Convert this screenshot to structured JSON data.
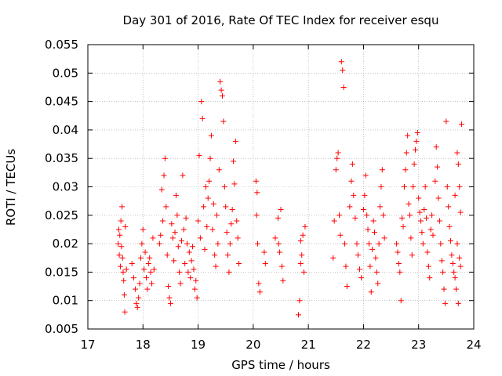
{
  "chart_data": {
    "type": "scatter",
    "title": "Day 301 of 2016, Rate Of TEC Index for receiver esqu",
    "xlabel": "GPS time / hours",
    "ylabel": "ROTI / TECUs",
    "xlim": [
      17,
      24
    ],
    "ylim": [
      0.005,
      0.055
    ],
    "xticks": [
      "17",
      "18",
      "19",
      "20",
      "21",
      "22",
      "23",
      "24"
    ],
    "yticks": [
      "0.005",
      "0.01",
      "0.015",
      "0.02",
      "0.025",
      "0.03",
      "0.035",
      "0.04",
      "0.045",
      "0.05",
      "0.055"
    ],
    "grid": true,
    "marker": "plus",
    "color": "#ff0000",
    "series": [
      {
        "name": "esqu",
        "points": [
          [
            17.55,
            0.02
          ],
          [
            17.56,
            0.0225
          ],
          [
            17.57,
            0.018
          ],
          [
            17.58,
            0.0215
          ],
          [
            17.59,
            0.016
          ],
          [
            17.6,
            0.024
          ],
          [
            17.61,
            0.0195
          ],
          [
            17.62,
            0.0265
          ],
          [
            17.63,
            0.0175
          ],
          [
            17.64,
            0.015
          ],
          [
            17.65,
            0.0135
          ],
          [
            17.66,
            0.011
          ],
          [
            17.67,
            0.008
          ],
          [
            17.68,
            0.023
          ],
          [
            17.7,
            0.0155
          ],
          [
            17.8,
            0.0165
          ],
          [
            17.83,
            0.014
          ],
          [
            17.86,
            0.012
          ],
          [
            17.88,
            0.0095
          ],
          [
            17.9,
            0.0088
          ],
          [
            17.92,
            0.0105
          ],
          [
            17.94,
            0.013
          ],
          [
            17.96,
            0.0175
          ],
          [
            17.98,
            0.02
          ],
          [
            18.0,
            0.0225
          ],
          [
            18.02,
            0.0155
          ],
          [
            18.04,
            0.0185
          ],
          [
            18.06,
            0.014
          ],
          [
            18.08,
            0.012
          ],
          [
            18.1,
            0.0165
          ],
          [
            18.12,
            0.0175
          ],
          [
            18.14,
            0.015
          ],
          [
            18.16,
            0.013
          ],
          [
            18.18,
            0.021
          ],
          [
            18.2,
            0.0155
          ],
          [
            18.3,
            0.02
          ],
          [
            18.32,
            0.0215
          ],
          [
            18.34,
            0.0295
          ],
          [
            18.36,
            0.024
          ],
          [
            18.38,
            0.032
          ],
          [
            18.4,
            0.035
          ],
          [
            18.42,
            0.0265
          ],
          [
            18.44,
            0.018
          ],
          [
            18.46,
            0.0125
          ],
          [
            18.48,
            0.0105
          ],
          [
            18.5,
            0.0095
          ],
          [
            18.52,
            0.0235
          ],
          [
            18.54,
            0.021
          ],
          [
            18.56,
            0.017
          ],
          [
            18.58,
            0.022
          ],
          [
            18.6,
            0.0285
          ],
          [
            18.62,
            0.025
          ],
          [
            18.64,
            0.0195
          ],
          [
            18.66,
            0.015
          ],
          [
            18.68,
            0.013
          ],
          [
            18.7,
            0.0205
          ],
          [
            18.72,
            0.032
          ],
          [
            18.74,
            0.0225
          ],
          [
            18.76,
            0.0165
          ],
          [
            18.78,
            0.0245
          ],
          [
            18.8,
            0.02
          ],
          [
            18.82,
            0.015
          ],
          [
            18.84,
            0.0185
          ],
          [
            18.86,
            0.014
          ],
          [
            18.88,
            0.017
          ],
          [
            18.9,
            0.0195
          ],
          [
            18.92,
            0.0155
          ],
          [
            18.94,
            0.012
          ],
          [
            18.96,
            0.0135
          ],
          [
            18.98,
            0.0105
          ],
          [
            19.0,
            0.024
          ],
          [
            19.02,
            0.0355
          ],
          [
            19.04,
            0.021
          ],
          [
            19.06,
            0.045
          ],
          [
            19.08,
            0.042
          ],
          [
            19.1,
            0.0265
          ],
          [
            19.12,
            0.019
          ],
          [
            19.14,
            0.03
          ],
          [
            19.16,
            0.023
          ],
          [
            19.18,
            0.028
          ],
          [
            19.2,
            0.031
          ],
          [
            19.22,
            0.035
          ],
          [
            19.24,
            0.039
          ],
          [
            19.26,
            0.0225
          ],
          [
            19.28,
            0.027
          ],
          [
            19.3,
            0.018
          ],
          [
            19.32,
            0.016
          ],
          [
            19.34,
            0.025
          ],
          [
            19.36,
            0.02
          ],
          [
            19.38,
            0.033
          ],
          [
            19.4,
            0.0485
          ],
          [
            19.42,
            0.047
          ],
          [
            19.44,
            0.046
          ],
          [
            19.46,
            0.0415
          ],
          [
            19.48,
            0.03
          ],
          [
            19.5,
            0.0265
          ],
          [
            19.52,
            0.022
          ],
          [
            19.54,
            0.018
          ],
          [
            19.56,
            0.015
          ],
          [
            19.58,
            0.02
          ],
          [
            19.6,
            0.0235
          ],
          [
            19.62,
            0.026
          ],
          [
            19.64,
            0.0345
          ],
          [
            19.66,
            0.0305
          ],
          [
            19.68,
            0.038
          ],
          [
            19.7,
            0.024
          ],
          [
            19.72,
            0.021
          ],
          [
            19.74,
            0.0165
          ],
          [
            20.05,
            0.031
          ],
          [
            20.07,
            0.029
          ],
          [
            20.06,
            0.025
          ],
          [
            20.08,
            0.02
          ],
          [
            20.1,
            0.013
          ],
          [
            20.12,
            0.0115
          ],
          [
            20.2,
            0.0185
          ],
          [
            20.22,
            0.0165
          ],
          [
            20.4,
            0.021
          ],
          [
            20.45,
            0.0245
          ],
          [
            20.5,
            0.026
          ],
          [
            20.48,
            0.0185
          ],
          [
            20.52,
            0.016
          ],
          [
            20.54,
            0.0135
          ],
          [
            20.46,
            0.02
          ],
          [
            20.82,
            0.0075
          ],
          [
            20.84,
            0.01
          ],
          [
            20.86,
            0.0165
          ],
          [
            20.88,
            0.018
          ],
          [
            20.9,
            0.0215
          ],
          [
            20.92,
            0.015
          ],
          [
            20.94,
            0.023
          ],
          [
            20.86,
            0.0205
          ],
          [
            21.45,
            0.0175
          ],
          [
            21.47,
            0.024
          ],
          [
            21.5,
            0.033
          ],
          [
            21.52,
            0.035
          ],
          [
            21.54,
            0.036
          ],
          [
            21.56,
            0.025
          ],
          [
            21.58,
            0.0215
          ],
          [
            21.6,
            0.052
          ],
          [
            21.62,
            0.0505
          ],
          [
            21.64,
            0.0475
          ],
          [
            21.66,
            0.02
          ],
          [
            21.68,
            0.016
          ],
          [
            21.7,
            0.0125
          ],
          [
            21.75,
            0.0265
          ],
          [
            21.78,
            0.031
          ],
          [
            21.8,
            0.034
          ],
          [
            21.82,
            0.0285
          ],
          [
            21.85,
            0.0245
          ],
          [
            21.88,
            0.02
          ],
          [
            21.9,
            0.018
          ],
          [
            21.93,
            0.0155
          ],
          [
            21.96,
            0.014
          ],
          [
            22.0,
            0.026
          ],
          [
            22.02,
            0.0285
          ],
          [
            22.04,
            0.032
          ],
          [
            22.06,
            0.025
          ],
          [
            22.08,
            0.0225
          ],
          [
            22.1,
            0.02
          ],
          [
            22.12,
            0.016
          ],
          [
            22.14,
            0.0115
          ],
          [
            22.16,
            0.019
          ],
          [
            22.18,
            0.024
          ],
          [
            22.2,
            0.022
          ],
          [
            22.22,
            0.0175
          ],
          [
            22.24,
            0.015
          ],
          [
            22.26,
            0.013
          ],
          [
            22.28,
            0.02
          ],
          [
            22.3,
            0.0265
          ],
          [
            22.32,
            0.03
          ],
          [
            22.34,
            0.033
          ],
          [
            22.36,
            0.025
          ],
          [
            22.38,
            0.021
          ],
          [
            22.6,
            0.02
          ],
          [
            22.62,
            0.0185
          ],
          [
            22.64,
            0.0165
          ],
          [
            22.66,
            0.015
          ],
          [
            22.68,
            0.01
          ],
          [
            22.7,
            0.0245
          ],
          [
            22.72,
            0.023
          ],
          [
            22.74,
            0.03
          ],
          [
            22.76,
            0.033
          ],
          [
            22.78,
            0.036
          ],
          [
            22.8,
            0.039
          ],
          [
            22.82,
            0.027
          ],
          [
            22.84,
            0.025
          ],
          [
            22.86,
            0.021
          ],
          [
            22.88,
            0.018
          ],
          [
            22.9,
            0.03
          ],
          [
            22.92,
            0.034
          ],
          [
            22.94,
            0.0365
          ],
          [
            22.96,
            0.038
          ],
          [
            22.98,
            0.0395
          ],
          [
            23.0,
            0.028
          ],
          [
            23.02,
            0.0255
          ],
          [
            23.04,
            0.024
          ],
          [
            23.06,
            0.022
          ],
          [
            23.08,
            0.02
          ],
          [
            23.1,
            0.026
          ],
          [
            23.12,
            0.03
          ],
          [
            23.14,
            0.0245
          ],
          [
            23.16,
            0.0185
          ],
          [
            23.18,
            0.016
          ],
          [
            23.2,
            0.014
          ],
          [
            23.22,
            0.0225
          ],
          [
            23.24,
            0.025
          ],
          [
            23.26,
            0.0215
          ],
          [
            23.3,
            0.031
          ],
          [
            23.32,
            0.037
          ],
          [
            23.34,
            0.0335
          ],
          [
            23.36,
            0.028
          ],
          [
            23.38,
            0.024
          ],
          [
            23.4,
            0.02
          ],
          [
            23.42,
            0.017
          ],
          [
            23.44,
            0.015
          ],
          [
            23.46,
            0.012
          ],
          [
            23.48,
            0.0095
          ],
          [
            23.5,
            0.0415
          ],
          [
            23.52,
            0.03
          ],
          [
            23.54,
            0.0265
          ],
          [
            23.56,
            0.023
          ],
          [
            23.58,
            0.0205
          ],
          [
            23.6,
            0.018
          ],
          [
            23.62,
            0.0165
          ],
          [
            23.64,
            0.015
          ],
          [
            23.66,
            0.014
          ],
          [
            23.68,
            0.012
          ],
          [
            23.7,
            0.036
          ],
          [
            23.72,
            0.034
          ],
          [
            23.74,
            0.03
          ],
          [
            23.76,
            0.0255
          ],
          [
            23.78,
            0.041
          ],
          [
            23.72,
            0.0095
          ],
          [
            23.74,
            0.0175
          ],
          [
            23.76,
            0.016
          ],
          [
            23.7,
            0.02
          ],
          [
            23.66,
            0.0285
          ]
        ]
      }
    ]
  }
}
